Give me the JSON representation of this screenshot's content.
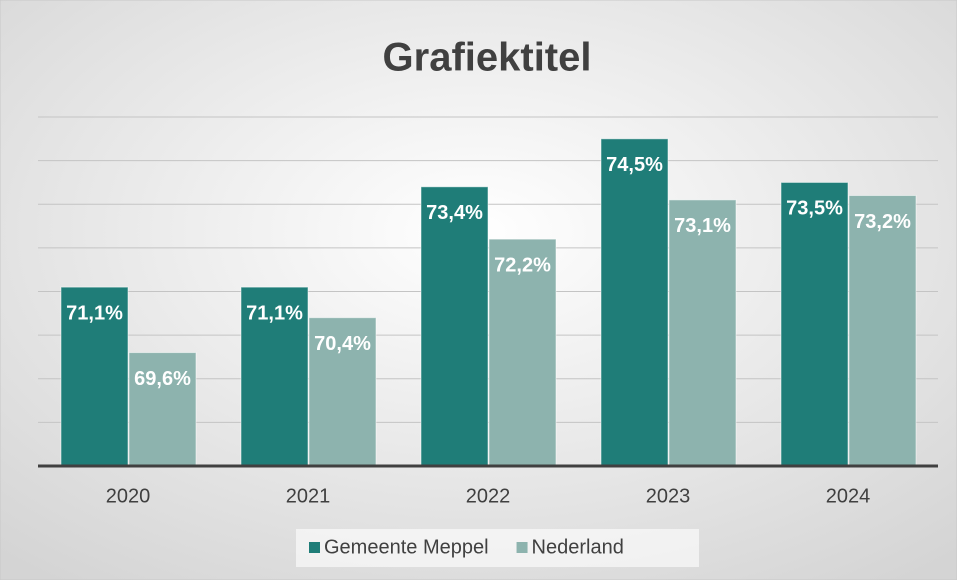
{
  "chart_data": {
    "type": "bar",
    "title": "Grafiektitel",
    "categories": [
      "2020",
      "2021",
      "2022",
      "2023",
      "2024"
    ],
    "series": [
      {
        "name": "Gemeente Meppel",
        "color": "#1f7d78",
        "values": [
          71.1,
          71.1,
          73.4,
          74.5,
          73.5
        ],
        "value_labels": [
          "71,1%",
          "71,1%",
          "73,4%",
          "74,5%",
          "73,5%"
        ]
      },
      {
        "name": "Nederland",
        "color": "#8db3ae",
        "values": [
          69.6,
          70.4,
          72.2,
          73.1,
          73.2
        ],
        "value_labels": [
          "69,6%",
          "70,4%",
          "72,2%",
          "73,1%",
          "73,2%"
        ]
      }
    ],
    "ylim": [
      67,
      75
    ],
    "yticks": [
      67,
      68,
      69,
      70,
      71,
      72,
      73,
      74,
      75
    ],
    "grid": true,
    "legend": "bottom"
  }
}
